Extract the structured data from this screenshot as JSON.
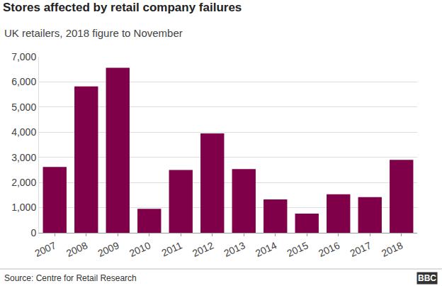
{
  "chart_data": {
    "type": "bar",
    "title": "Stores affected by retail company failures",
    "subtitle": "UK retailers, 2018 figure to November",
    "categories": [
      "2007",
      "2008",
      "2009",
      "2010",
      "2011",
      "2012",
      "2013",
      "2014",
      "2015",
      "2016",
      "2017",
      "2018"
    ],
    "values": [
      2620,
      5820,
      6560,
      950,
      2500,
      3950,
      2530,
      1330,
      760,
      1530,
      1420,
      2900
    ],
    "color": "#7f0048",
    "ylim": [
      0,
      7000
    ],
    "yticks": [
      0,
      {
        "value": 1000,
        "label": "1,000"
      },
      {
        "value": 2000,
        "label": "2,000"
      },
      {
        "value": 3000,
        "label": "3,000"
      },
      {
        "value": 4000,
        "label": "4,000"
      },
      {
        "value": 5000,
        "label": "5,000"
      },
      {
        "value": 6000,
        "label": "6,000"
      },
      {
        "value": 7000,
        "label": "7,000"
      }
    ],
    "grid": true,
    "source": "Source: Centre for Retail Research",
    "logo": "BBC"
  }
}
